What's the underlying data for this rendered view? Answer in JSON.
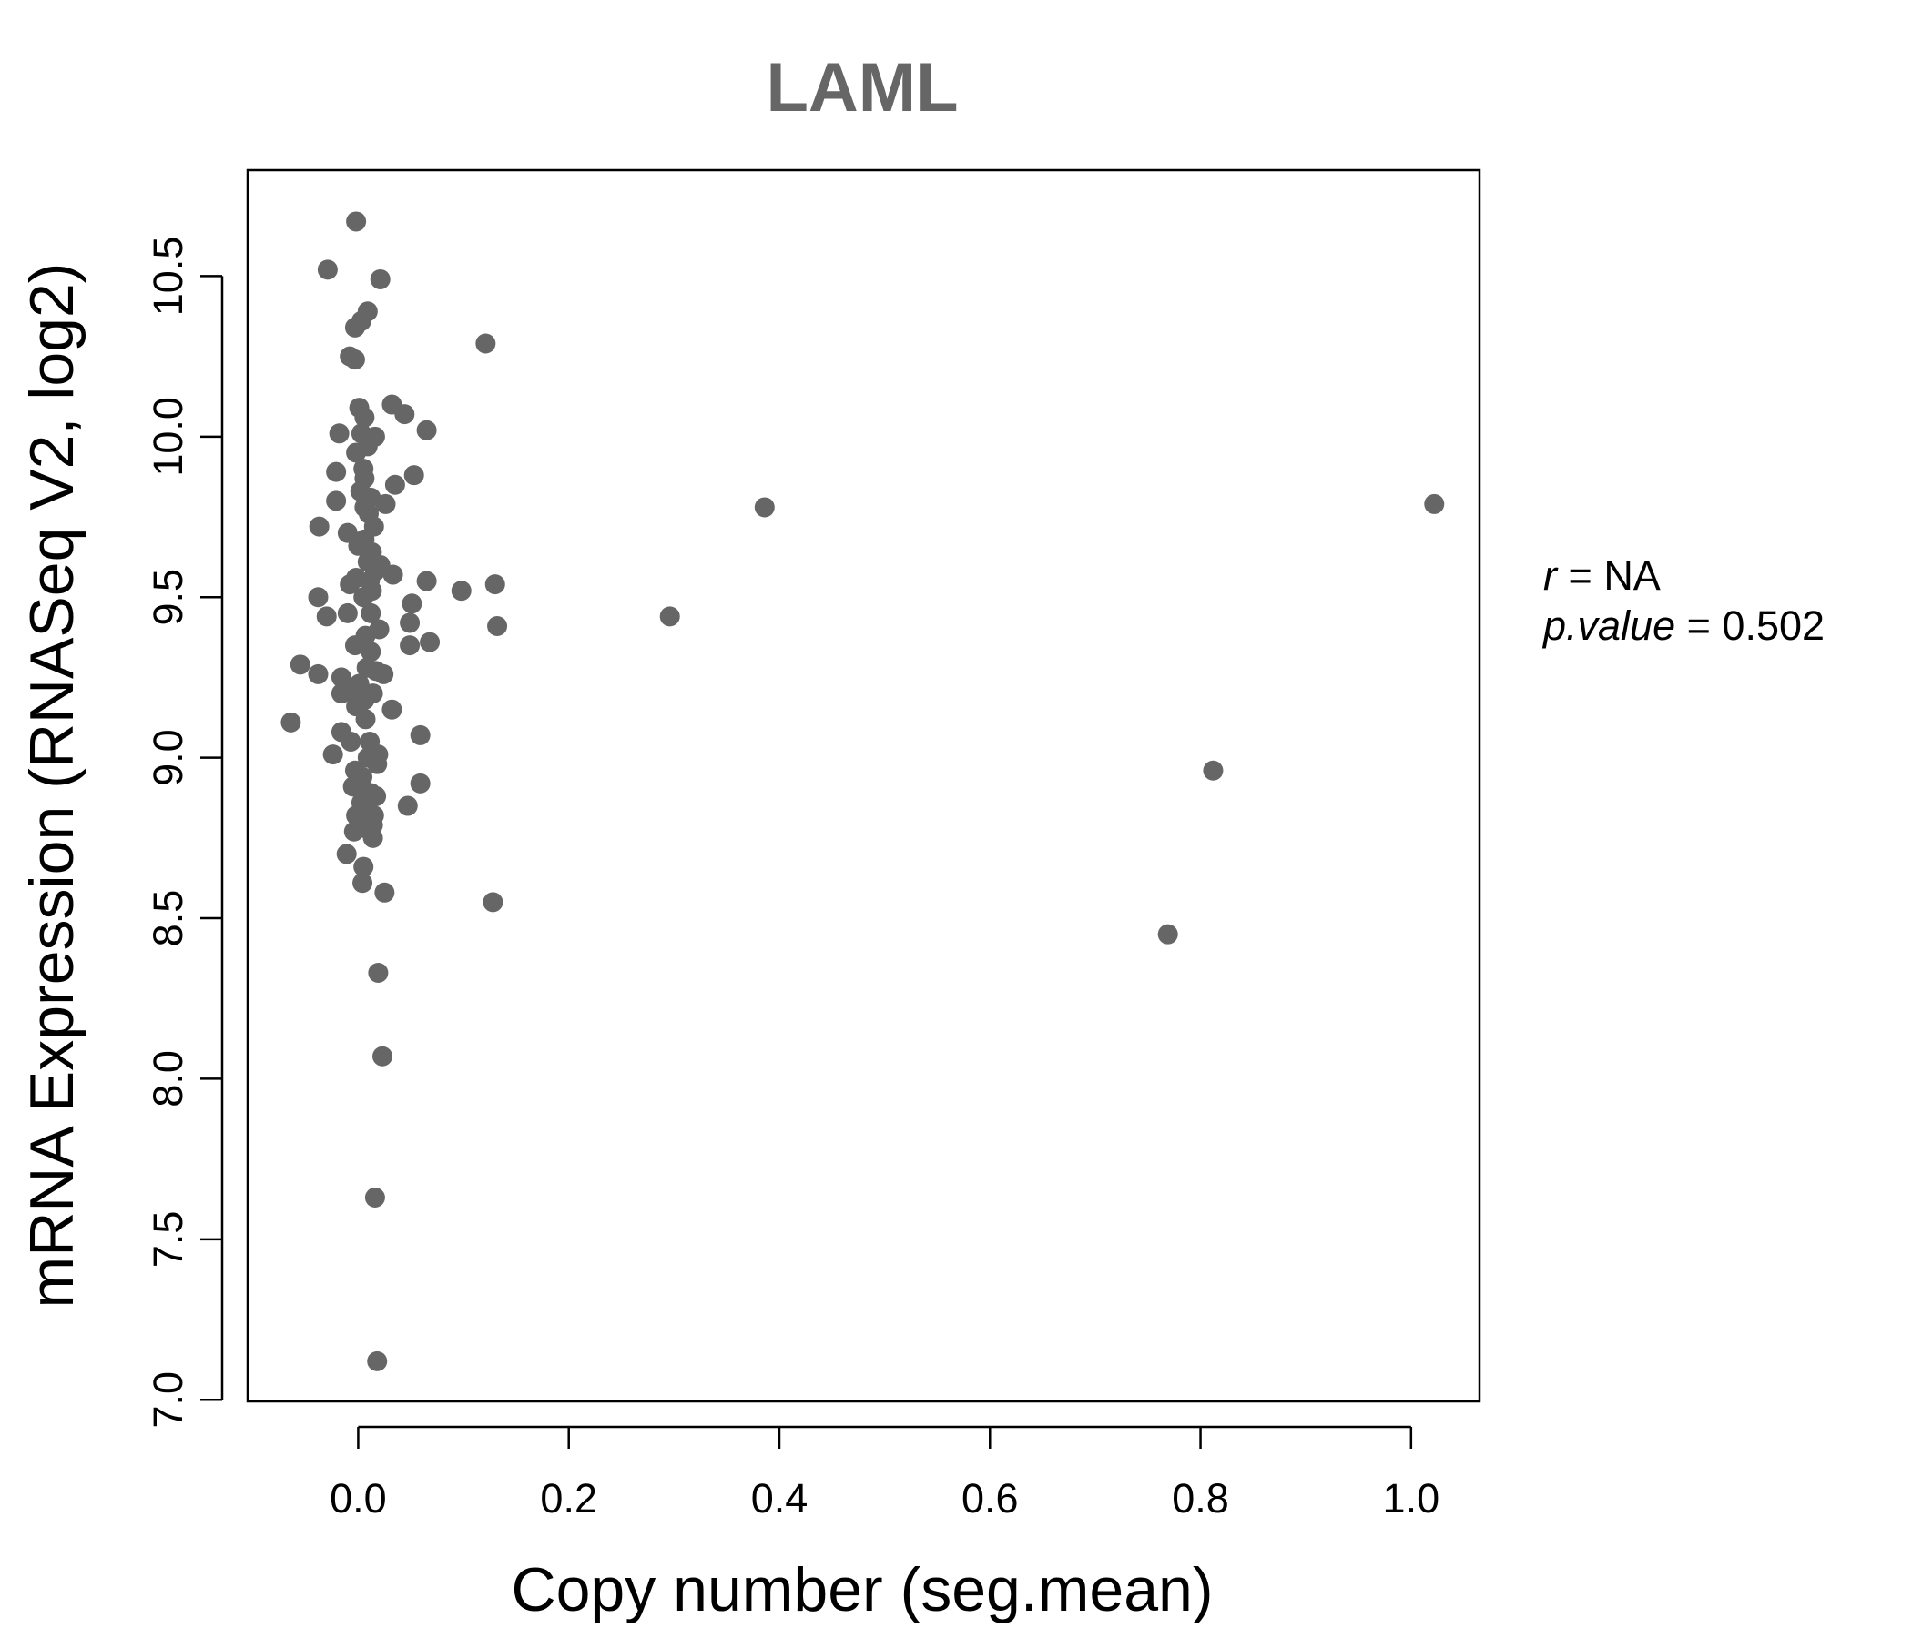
{
  "chart_data": {
    "type": "scatter",
    "title": "LAML",
    "xlabel": "Copy number (seg.mean)",
    "ylabel": "mRNA Expression (RNASeq V2, log2)",
    "xlim": [
      -0.105,
      1.065
    ],
    "ylim": [
      6.995,
      10.83
    ],
    "xticks": [
      "0.0",
      "0.2",
      "0.4",
      "0.6",
      "0.8",
      "1.0"
    ],
    "yticks": [
      "7.0",
      "7.5",
      "8.0",
      "8.5",
      "9.0",
      "9.5",
      "10.0",
      "10.5"
    ],
    "grid": false,
    "point_color": "#666666",
    "annotation": {
      "r_label": "r",
      "r_value": "NA",
      "p_label": "p.value",
      "p_value": "0.502"
    },
    "points": [
      [
        -0.002,
        10.67
      ],
      [
        -0.029,
        10.52
      ],
      [
        0.021,
        10.49
      ],
      [
        0.009,
        10.39
      ],
      [
        0.003,
        10.36
      ],
      [
        -0.003,
        10.34
      ],
      [
        -0.008,
        10.25
      ],
      [
        -0.003,
        10.24
      ],
      [
        0.121,
        10.29
      ],
      [
        0.032,
        10.1
      ],
      [
        0.001,
        10.09
      ],
      [
        0.044,
        10.07
      ],
      [
        0.006,
        10.06
      ],
      [
        0.065,
        10.02
      ],
      [
        -0.018,
        10.01
      ],
      [
        0.003,
        10.01
      ],
      [
        0.016,
        10.0
      ],
      [
        0.009,
        9.97
      ],
      [
        -0.002,
        9.95
      ],
      [
        0.005,
        9.9
      ],
      [
        -0.021,
        9.89
      ],
      [
        0.006,
        9.87
      ],
      [
        0.053,
        9.88
      ],
      [
        0.035,
        9.85
      ],
      [
        0.002,
        9.83
      ],
      [
        0.012,
        9.81
      ],
      [
        -0.021,
        9.8
      ],
      [
        0.026,
        9.79
      ],
      [
        0.006,
        9.78
      ],
      [
        0.01,
        9.76
      ],
      [
        0.386,
        9.78
      ],
      [
        1.022,
        9.79
      ],
      [
        -0.037,
        9.72
      ],
      [
        0.015,
        9.72
      ],
      [
        -0.01,
        9.7
      ],
      [
        0.006,
        9.68
      ],
      [
        0.0,
        9.66
      ],
      [
        0.013,
        9.64
      ],
      [
        0.009,
        9.61
      ],
      [
        0.021,
        9.6
      ],
      [
        0.016,
        9.58
      ],
      [
        0.033,
        9.57
      ],
      [
        -0.002,
        9.56
      ],
      [
        0.011,
        9.55
      ],
      [
        -0.008,
        9.54
      ],
      [
        0.065,
        9.55
      ],
      [
        0.013,
        9.52
      ],
      [
        0.098,
        9.52
      ],
      [
        0.13,
        9.54
      ],
      [
        -0.038,
        9.5
      ],
      [
        0.005,
        9.5
      ],
      [
        0.051,
        9.48
      ],
      [
        0.296,
        9.44
      ],
      [
        -0.03,
        9.44
      ],
      [
        -0.01,
        9.45
      ],
      [
        0.012,
        9.45
      ],
      [
        0.049,
        9.42
      ],
      [
        0.132,
        9.41
      ],
      [
        0.02,
        9.4
      ],
      [
        0.007,
        9.38
      ],
      [
        0.068,
        9.36
      ],
      [
        0.049,
        9.35
      ],
      [
        -0.003,
        9.35
      ],
      [
        0.012,
        9.33
      ],
      [
        -0.055,
        9.29
      ],
      [
        0.008,
        9.28
      ],
      [
        0.017,
        9.27
      ],
      [
        0.024,
        9.26
      ],
      [
        -0.038,
        9.26
      ],
      [
        -0.016,
        9.25
      ],
      [
        0.001,
        9.23
      ],
      [
        -0.008,
        9.21
      ],
      [
        0.014,
        9.2
      ],
      [
        -0.016,
        9.2
      ],
      [
        0.006,
        9.18
      ],
      [
        0.032,
        9.15
      ],
      [
        -0.002,
        9.16
      ],
      [
        0.007,
        9.12
      ],
      [
        -0.064,
        9.11
      ],
      [
        0.059,
        9.07
      ],
      [
        -0.016,
        9.08
      ],
      [
        -0.007,
        9.05
      ],
      [
        0.011,
        9.05
      ],
      [
        -0.024,
        9.01
      ],
      [
        0.019,
        9.01
      ],
      [
        0.009,
        9.0
      ],
      [
        0.018,
        8.98
      ],
      [
        -0.003,
        8.96
      ],
      [
        0.004,
        8.94
      ],
      [
        0.059,
        8.92
      ],
      [
        0.812,
        8.96
      ],
      [
        -0.005,
        8.91
      ],
      [
        0.012,
        8.89
      ],
      [
        0.017,
        8.88
      ],
      [
        0.003,
        8.86
      ],
      [
        0.047,
        8.85
      ],
      [
        0.009,
        8.84
      ],
      [
        0.015,
        8.82
      ],
      [
        -0.002,
        8.82
      ],
      [
        0.003,
        8.8
      ],
      [
        0.014,
        8.79
      ],
      [
        0.007,
        8.78
      ],
      [
        -0.004,
        8.77
      ],
      [
        0.014,
        8.75
      ],
      [
        -0.011,
        8.7
      ],
      [
        0.005,
        8.66
      ],
      [
        0.004,
        8.61
      ],
      [
        0.025,
        8.58
      ],
      [
        0.128,
        8.55
      ],
      [
        0.769,
        8.45
      ],
      [
        0.019,
        8.33
      ],
      [
        0.023,
        8.07
      ],
      [
        0.016,
        7.63
      ],
      [
        0.018,
        7.12
      ]
    ]
  }
}
